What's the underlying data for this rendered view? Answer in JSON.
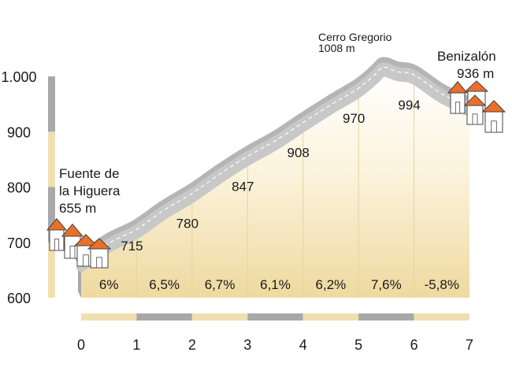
{
  "chart_data": {
    "type": "area",
    "title": "",
    "xlabel": "",
    "ylabel": "",
    "xlim": [
      0,
      7
    ],
    "ylim": [
      600,
      1000
    ],
    "x_ticks": [
      {
        "value": 0,
        "label": "0"
      },
      {
        "value": 1,
        "label": "1"
      },
      {
        "value": 2,
        "label": "2"
      },
      {
        "value": 3,
        "label": "3"
      },
      {
        "value": 4,
        "label": "4"
      },
      {
        "value": 5,
        "label": "5"
      },
      {
        "value": 6,
        "label": "6"
      },
      {
        "value": 7,
        "label": "7"
      }
    ],
    "y_ticks": [
      {
        "value": 1000,
        "label": "1.000"
      },
      {
        "value": 900,
        "label": "900"
      },
      {
        "value": 800,
        "label": "800"
      },
      {
        "value": 700,
        "label": "700"
      },
      {
        "value": 600,
        "label": "600"
      }
    ],
    "profile": [
      {
        "x": 0,
        "y": 655
      },
      {
        "x": 0.5,
        "y": 690
      },
      {
        "x": 1,
        "y": 715
      },
      {
        "x": 1.5,
        "y": 750
      },
      {
        "x": 2,
        "y": 780
      },
      {
        "x": 2.5,
        "y": 815
      },
      {
        "x": 3,
        "y": 847
      },
      {
        "x": 3.5,
        "y": 875
      },
      {
        "x": 4,
        "y": 908
      },
      {
        "x": 4.5,
        "y": 940
      },
      {
        "x": 5,
        "y": 970
      },
      {
        "x": 5.3,
        "y": 995
      },
      {
        "x": 5.45,
        "y": 1008
      },
      {
        "x": 5.7,
        "y": 1000
      },
      {
        "x": 6,
        "y": 994
      },
      {
        "x": 6.5,
        "y": 960
      },
      {
        "x": 7,
        "y": 936
      }
    ],
    "elevation_labels": [
      {
        "x": 1,
        "y": 715,
        "label": "715"
      },
      {
        "x": 2,
        "y": 780,
        "label": "780"
      },
      {
        "x": 3,
        "y": 847,
        "label": "847"
      },
      {
        "x": 4,
        "y": 908,
        "label": "908"
      },
      {
        "x": 5,
        "y": 970,
        "label": "970"
      },
      {
        "x": 6,
        "y": 994,
        "label": "994"
      }
    ],
    "gradients": [
      {
        "from": 0,
        "to": 1,
        "label": "6%"
      },
      {
        "from": 1,
        "to": 2,
        "label": "6,5%"
      },
      {
        "from": 2,
        "to": 3,
        "label": "6,7%"
      },
      {
        "from": 3,
        "to": 4,
        "label": "6,1%"
      },
      {
        "from": 4,
        "to": 5,
        "label": "6,2%"
      },
      {
        "from": 5,
        "to": 6,
        "label": "7,6%"
      },
      {
        "from": 6,
        "to": 7,
        "label": "-5,8%"
      }
    ],
    "places": {
      "start": {
        "x": 0,
        "y": 655,
        "lines": [
          "Fuente de",
          "la Higuera",
          "655 m"
        ]
      },
      "summit": {
        "x": 5.45,
        "y": 1008,
        "lines": [
          "Cerro Gregorio",
          "1008  m"
        ]
      },
      "end": {
        "x": 7,
        "y": 936,
        "lines": [
          "Benizalón",
          "936 m"
        ]
      }
    }
  },
  "colors": {
    "cream": "#f0dfb0",
    "gray": "#a8a8a8",
    "road": "#c8c8c8",
    "road_edge": "#b5b5b5",
    "roof": "#e8702a",
    "house_wall": "#ffffff",
    "house_line": "#444444"
  }
}
